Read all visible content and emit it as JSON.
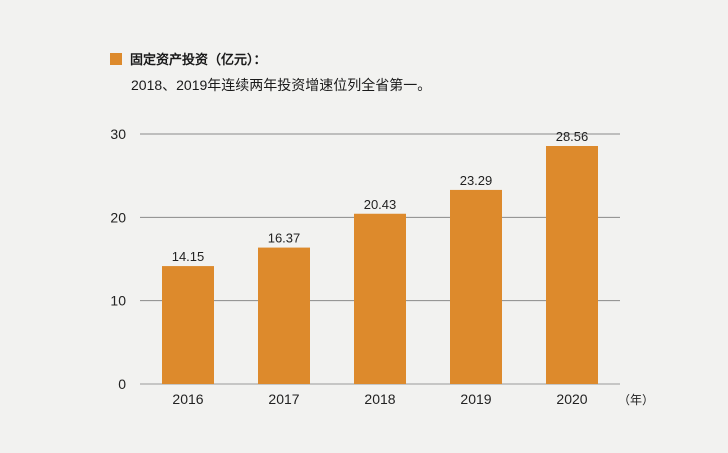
{
  "chart_data": {
    "type": "bar",
    "title": "固定资产投资（亿元）：",
    "subtitle": "2018、2019年连续两年投资增速位列全省第一。",
    "categories": [
      "2016",
      "2017",
      "2018",
      "2019",
      "2020"
    ],
    "values": [
      14.15,
      16.37,
      20.43,
      23.29,
      28.56
    ],
    "value_labels": [
      "14.15",
      "16.37",
      "20.43",
      "23.29",
      "28.56"
    ],
    "yticks": [
      "0",
      "10",
      "20",
      "30"
    ],
    "ylim": [
      0,
      30
    ],
    "xlabel": "（年）",
    "ylabel": "",
    "legend": "固定资产投资（亿元）：",
    "grid": true,
    "bar_color": "#dd8a2c"
  }
}
